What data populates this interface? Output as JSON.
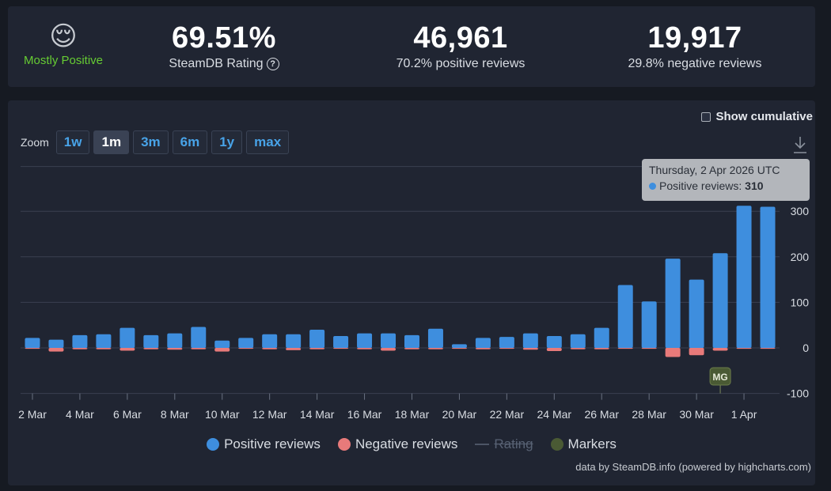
{
  "summary": {
    "rating_word": "Mostly Positive",
    "rating_value": "69.51%",
    "rating_label": "SteamDB Rating",
    "help_icon": "?",
    "positive_count": "46,961",
    "positive_label": "70.2% positive reviews",
    "negative_count": "19,917",
    "negative_label": "29.8% negative reviews",
    "emoji": "😌"
  },
  "controls": {
    "cumulative_label": "Show cumulative",
    "zoom_label": "Zoom",
    "zoom_buttons": [
      "1w",
      "1m",
      "3m",
      "6m",
      "1y",
      "max"
    ],
    "active_zoom": "1m"
  },
  "tooltip": {
    "date": "Thursday, 2 Apr 2026 UTC",
    "series": "Positive reviews: ",
    "value": "310"
  },
  "legend": {
    "positive": "Positive reviews",
    "negative": "Negative reviews",
    "rating": "Rating",
    "markers": "Markers"
  },
  "credit": "data by SteamDB.info (powered by highcharts.com)",
  "colors": {
    "positive": "#3e8ede",
    "negative": "#e87a7a",
    "marker": "#4a5a34",
    "grid": "#3a4050"
  },
  "chart_data": {
    "type": "bar",
    "title": "",
    "xlabel": "",
    "ylabel": "",
    "ylim": [
      -100,
      400
    ],
    "yticks": [
      -100,
      0,
      100,
      200,
      300
    ],
    "grid": true,
    "legend_position": "bottom-center",
    "categories": [
      "2 Mar",
      "3 Mar",
      "4 Mar",
      "5 Mar",
      "6 Mar",
      "7 Mar",
      "8 Mar",
      "9 Mar",
      "10 Mar",
      "11 Mar",
      "12 Mar",
      "13 Mar",
      "14 Mar",
      "15 Mar",
      "16 Mar",
      "17 Mar",
      "18 Mar",
      "19 Mar",
      "20 Mar",
      "21 Mar",
      "22 Mar",
      "23 Mar",
      "24 Mar",
      "25 Mar",
      "26 Mar",
      "27 Mar",
      "28 Mar",
      "29 Mar",
      "30 Mar",
      "31 Mar",
      "1 Apr",
      "2 Apr"
    ],
    "xtick_labels": [
      "2 Mar",
      "4 Mar",
      "6 Mar",
      "8 Mar",
      "10 Mar",
      "12 Mar",
      "14 Mar",
      "16 Mar",
      "18 Mar",
      "20 Mar",
      "22 Mar",
      "24 Mar",
      "26 Mar",
      "28 Mar",
      "30 Mar",
      "1 Apr"
    ],
    "series": [
      {
        "name": "Positive reviews",
        "values": [
          22,
          18,
          28,
          30,
          44,
          28,
          32,
          46,
          16,
          22,
          30,
          30,
          40,
          26,
          32,
          32,
          28,
          42,
          8,
          22,
          24,
          32,
          26,
          30,
          44,
          138,
          102,
          196,
          150,
          208,
          312,
          310
        ]
      },
      {
        "name": "Negative reviews",
        "values": [
          -2,
          -8,
          -3,
          -3,
          -6,
          -3,
          -4,
          -3,
          -8,
          -2,
          -3,
          -5,
          -3,
          -2,
          -3,
          -6,
          -3,
          -3,
          -2,
          -3,
          -2,
          -4,
          -7,
          -3,
          -3,
          -2,
          -2,
          -20,
          -16,
          -6,
          -2,
          -2
        ]
      }
    ],
    "markers": [
      {
        "label": "MG",
        "category": "31 Mar"
      }
    ]
  }
}
